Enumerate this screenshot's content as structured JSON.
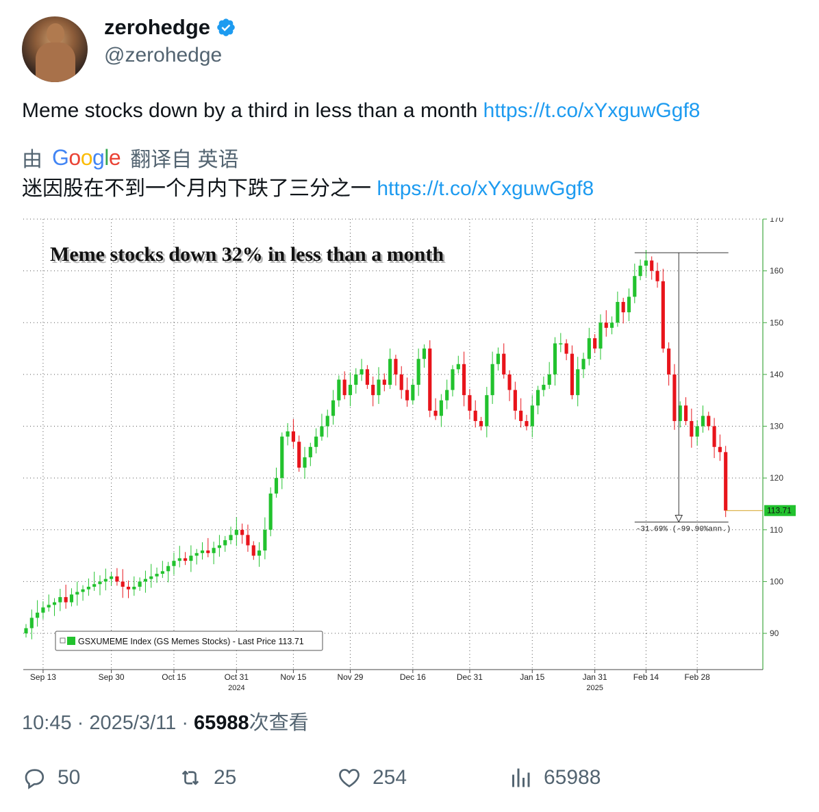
{
  "author": {
    "display_name": "zerohedge",
    "handle": "@zerohedge",
    "verified": true
  },
  "tweet": {
    "text": "Meme stocks down by a third in less than a month ",
    "link": "https://t.co/xYxguwGgf8"
  },
  "translation": {
    "prefix": "由",
    "provider": "Google",
    "suffix": "翻译自 英语",
    "text": "迷因股在不到一个月内下跌了三分之一 ",
    "link": "https://t.co/xYxguwGgf8"
  },
  "meta": {
    "time": "10:45",
    "date": "2025/3/11",
    "views": "65988",
    "views_label": "次查看",
    "separator": "·"
  },
  "actions": {
    "replies": "50",
    "retweets": "25",
    "likes": "254",
    "views": "65988"
  },
  "icons": [
    "verified-badge-icon",
    "reply-icon",
    "retweet-icon",
    "like-icon",
    "analytics-icon"
  ],
  "colors": {
    "link": "#1d9bf0",
    "up": "#22c22e",
    "down": "#e8141b",
    "axis": "#3fa83f"
  },
  "chart_data": {
    "type": "candlestick",
    "title": "Meme stocks down 32% in less than a month",
    "legend": "GSXUMEME Index (GS Memes Stocks) - Last Price 113.71",
    "legend_position": "bottom-left",
    "last_price_label": "113.71",
    "drawdown_annotation": "-31.69% (-99.90%ann.)",
    "y_ticks": [
      90,
      100,
      110,
      120,
      130,
      140,
      150,
      160,
      170
    ],
    "ylim": [
      83,
      170
    ],
    "x_ticks": [
      "Sep 13",
      "Sep 30",
      "Oct 15",
      "Oct 31",
      "Nov 15",
      "Nov 29",
      "Dec 16",
      "Dec 31",
      "Jan 15",
      "Jan 31",
      "Feb 14",
      "Feb 28"
    ],
    "x_tick_index": [
      3,
      15,
      26,
      37,
      47,
      57,
      68,
      78,
      89,
      100,
      109,
      118
    ],
    "years": [
      {
        "label": "2024",
        "index": 37
      },
      {
        "label": "2025",
        "index": 100
      }
    ],
    "grid": true,
    "closes": [
      91,
      93,
      94,
      95,
      95.5,
      96,
      97,
      96,
      97.5,
      98,
      98.5,
      99,
      99.5,
      100,
      100.5,
      101,
      100,
      99,
      98.5,
      99,
      100,
      100.5,
      101,
      101.5,
      102,
      103,
      104,
      104.5,
      104,
      105,
      105.5,
      106,
      105.5,
      106.5,
      107,
      108,
      109,
      110,
      109,
      107,
      105,
      106,
      110,
      117,
      120,
      128,
      129,
      127,
      122,
      124,
      126,
      128,
      130,
      132,
      135,
      139,
      136,
      138,
      140,
      141,
      138,
      136,
      139,
      138,
      143,
      140,
      137,
      135,
      138,
      143,
      145,
      133,
      132,
      135,
      137,
      141,
      142,
      136,
      133,
      131,
      130,
      136,
      142,
      144,
      140,
      137,
      133,
      131,
      130,
      134,
      137,
      138,
      140,
      146,
      146,
      144,
      136,
      141,
      143,
      147,
      145,
      150,
      149,
      150,
      154,
      152,
      155,
      159,
      161,
      162,
      160,
      158,
      145,
      140,
      131,
      134,
      131,
      128,
      130,
      132,
      130,
      126,
      125,
      113.71
    ]
  }
}
